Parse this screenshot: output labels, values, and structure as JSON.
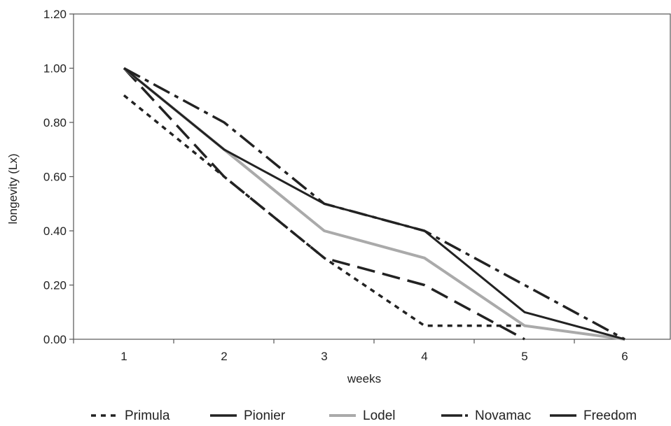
{
  "chart_data": {
    "type": "line",
    "x": [
      1,
      2,
      3,
      4,
      5,
      6
    ],
    "xlabel": "weeks",
    "ylabel": "longevity (Lx)",
    "ylim": [
      0,
      1.2
    ],
    "y_ticks": [
      "0.00",
      "0.20",
      "0.40",
      "0.60",
      "0.80",
      "1.00",
      "1.20"
    ],
    "x_ticks": [
      "1",
      "2",
      "3",
      "4",
      "5",
      "6"
    ],
    "grid": false,
    "legend_position": "bottom",
    "series": [
      {
        "name": "Primula",
        "values": [
          0.9,
          0.6,
          0.3,
          0.05,
          0.05,
          null
        ],
        "color": "#222222",
        "style": "dotted"
      },
      {
        "name": "Pionier",
        "values": [
          1.0,
          0.6,
          0.3,
          0.2,
          0.0,
          null
        ],
        "color": "#222222",
        "style": "dashed"
      },
      {
        "name": "Lodel",
        "values": [
          1.0,
          0.7,
          0.4,
          0.3,
          0.05,
          0.0
        ],
        "color": "#aaaaaa",
        "style": "solid"
      },
      {
        "name": "Novamac",
        "values": [
          1.0,
          0.8,
          0.5,
          0.4,
          0.2,
          0.0
        ],
        "color": "#222222",
        "style": "dash-dot"
      },
      {
        "name": "Freedom",
        "values": [
          1.0,
          0.7,
          0.5,
          0.4,
          0.1,
          0.0
        ],
        "color": "#222222",
        "style": "solid"
      }
    ]
  }
}
